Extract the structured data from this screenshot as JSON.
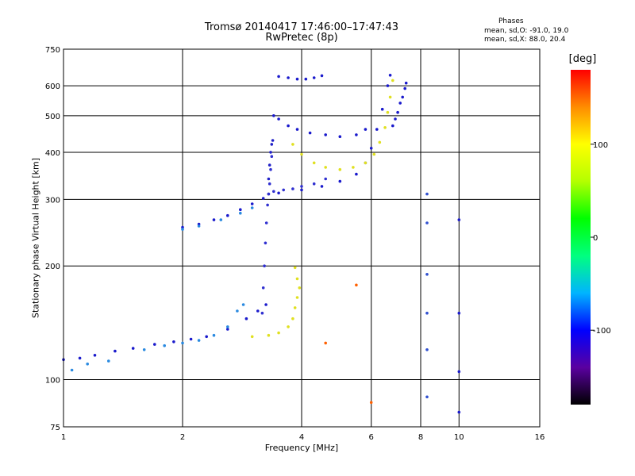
{
  "chart_data": {
    "type": "scatter",
    "title": "Tromsø 20140417 17:46:00–17:47:43",
    "subtitle": "RwPretec (8p)",
    "xlabel": "Frequency [MHz]",
    "ylabel": "Stationary phase Virtual Height [km]",
    "x_scale": "log",
    "y_scale": "log",
    "xlim": [
      1,
      16
    ],
    "ylim": [
      75,
      750
    ],
    "x_ticks": [
      1,
      2,
      4,
      6,
      8,
      10,
      16
    ],
    "y_ticks": [
      75,
      100,
      200,
      300,
      400,
      500,
      600,
      750
    ],
    "grid": true,
    "stats": {
      "heading": "Phases",
      "o_line": "mean, sd,O: -91.0, 19.0",
      "x_line": "mean, sd,X:  88.0, 20.4"
    },
    "colorbar": {
      "label": "[deg]",
      "range": [
        -180,
        180
      ],
      "ticks": [
        100,
        0,
        -100
      ],
      "colors": [
        "#000000",
        "#5a00a0",
        "#0000ff",
        "#00b4ff",
        "#00ff80",
        "#00ff00",
        "#b4ff00",
        "#ffff00",
        "#ff8c00",
        "#ff0000"
      ]
    },
    "series": [
      {
        "name": "",
        "color": "#1a1acc",
        "points": [
          [
            1.0,
            113
          ],
          [
            1.1,
            114
          ],
          [
            1.2,
            116
          ],
          [
            1.35,
            119
          ],
          [
            1.5,
            121
          ],
          [
            1.7,
            124
          ],
          [
            1.9,
            126
          ],
          [
            2.1,
            128
          ],
          [
            2.3,
            130
          ],
          [
            2.6,
            136
          ],
          [
            2.9,
            145
          ],
          [
            3.1,
            152
          ],
          [
            3.25,
            158
          ]
        ]
      },
      {
        "name": "",
        "color": "#2a8ae0",
        "points": [
          [
            1.05,
            106
          ],
          [
            1.15,
            110
          ],
          [
            1.3,
            112
          ],
          [
            1.6,
            120
          ],
          [
            1.8,
            123
          ],
          [
            2.0,
            125
          ],
          [
            2.2,
            127
          ],
          [
            2.4,
            131
          ],
          [
            2.6,
            138
          ],
          [
            2.75,
            152
          ],
          [
            2.85,
            158
          ]
        ]
      },
      {
        "name": "",
        "color": "#3030d0",
        "points": [
          [
            3.18,
            150
          ],
          [
            3.2,
            175
          ],
          [
            3.22,
            200
          ],
          [
            3.24,
            230
          ],
          [
            3.26,
            260
          ],
          [
            3.28,
            290
          ],
          [
            3.3,
            310
          ],
          [
            3.32,
            330
          ],
          [
            3.34,
            360
          ],
          [
            3.36,
            390
          ]
        ]
      },
      {
        "name": "",
        "color": "#e0e020",
        "points": [
          [
            3.0,
            130
          ],
          [
            3.3,
            131
          ],
          [
            3.5,
            133
          ],
          [
            3.7,
            138
          ],
          [
            3.8,
            145
          ],
          [
            3.85,
            155
          ],
          [
            3.9,
            165
          ],
          [
            3.95,
            175
          ],
          [
            3.9,
            185
          ],
          [
            3.85,
            198
          ]
        ]
      },
      {
        "name": "",
        "color": "#1a1acc",
        "points": [
          [
            2.0,
            253
          ],
          [
            2.2,
            258
          ],
          [
            2.4,
            265
          ],
          [
            2.6,
            272
          ],
          [
            2.8,
            282
          ],
          [
            3.0,
            292
          ],
          [
            3.2,
            302
          ],
          [
            3.5,
            312
          ],
          [
            4.0,
            318
          ],
          [
            4.5,
            325
          ],
          [
            5.0,
            335
          ],
          [
            5.5,
            350
          ],
          [
            5.8,
            375
          ],
          [
            6.0,
            410
          ],
          [
            6.2,
            460
          ],
          [
            6.4,
            520
          ],
          [
            6.6,
            600
          ],
          [
            6.7,
            640
          ]
        ]
      },
      {
        "name": "",
        "color": "#2a8ae0",
        "points": [
          [
            2.0,
            250
          ],
          [
            2.2,
            255
          ],
          [
            2.5,
            265
          ],
          [
            2.8,
            276
          ],
          [
            3.0,
            285
          ]
        ]
      },
      {
        "name": "",
        "color": "#3030d0",
        "points": [
          [
            3.3,
            310
          ],
          [
            3.4,
            315
          ],
          [
            3.6,
            318
          ],
          [
            3.8,
            320
          ],
          [
            4.0,
            325
          ],
          [
            4.3,
            330
          ],
          [
            4.6,
            340
          ]
        ]
      },
      {
        "name": "",
        "color": "#2020c8",
        "points": [
          [
            3.3,
            340
          ],
          [
            3.32,
            370
          ],
          [
            3.34,
            400
          ],
          [
            3.36,
            420
          ],
          [
            3.38,
            430
          ]
        ]
      },
      {
        "name": "",
        "color": "#1a1acc",
        "points": [
          [
            3.4,
            500
          ],
          [
            3.5,
            490
          ],
          [
            3.7,
            470
          ],
          [
            3.9,
            460
          ],
          [
            4.2,
            450
          ],
          [
            4.6,
            445
          ],
          [
            5.0,
            440
          ],
          [
            5.5,
            445
          ],
          [
            5.8,
            460
          ]
        ]
      },
      {
        "name": "",
        "color": "#1a1acc",
        "points": [
          [
            3.5,
            635
          ],
          [
            3.7,
            630
          ],
          [
            3.9,
            625
          ],
          [
            4.1,
            625
          ],
          [
            4.3,
            630
          ],
          [
            4.5,
            638
          ]
        ]
      },
      {
        "name": "",
        "color": "#e0e020",
        "points": [
          [
            3.8,
            420
          ],
          [
            4.0,
            395
          ],
          [
            4.3,
            375
          ],
          [
            4.6,
            365
          ],
          [
            5.0,
            360
          ],
          [
            5.4,
            365
          ],
          [
            5.8,
            375
          ],
          [
            6.1,
            395
          ],
          [
            6.3,
            425
          ],
          [
            6.5,
            465
          ],
          [
            6.6,
            510
          ],
          [
            6.7,
            560
          ],
          [
            6.8,
            620
          ]
        ]
      },
      {
        "name": "",
        "color": "#1a1acc",
        "points": [
          [
            6.8,
            470
          ],
          [
            6.9,
            490
          ],
          [
            7.0,
            510
          ],
          [
            7.1,
            540
          ],
          [
            7.2,
            560
          ],
          [
            7.3,
            590
          ],
          [
            7.35,
            610
          ]
        ]
      },
      {
        "name": "",
        "color": "#3050d0",
        "points": [
          [
            8.3,
            90
          ],
          [
            8.3,
            120
          ],
          [
            8.3,
            150
          ],
          [
            8.3,
            190
          ],
          [
            8.3,
            260
          ],
          [
            8.3,
            310
          ]
        ]
      },
      {
        "name": "",
        "color": "#1a1acc",
        "points": [
          [
            10.0,
            82
          ],
          [
            10.0,
            105
          ],
          [
            10.0,
            150
          ],
          [
            10.0,
            265
          ]
        ]
      },
      {
        "name": "",
        "color": "#ff6000",
        "points": [
          [
            4.6,
            125
          ],
          [
            5.5,
            178
          ],
          [
            6.0,
            87
          ]
        ]
      }
    ]
  }
}
